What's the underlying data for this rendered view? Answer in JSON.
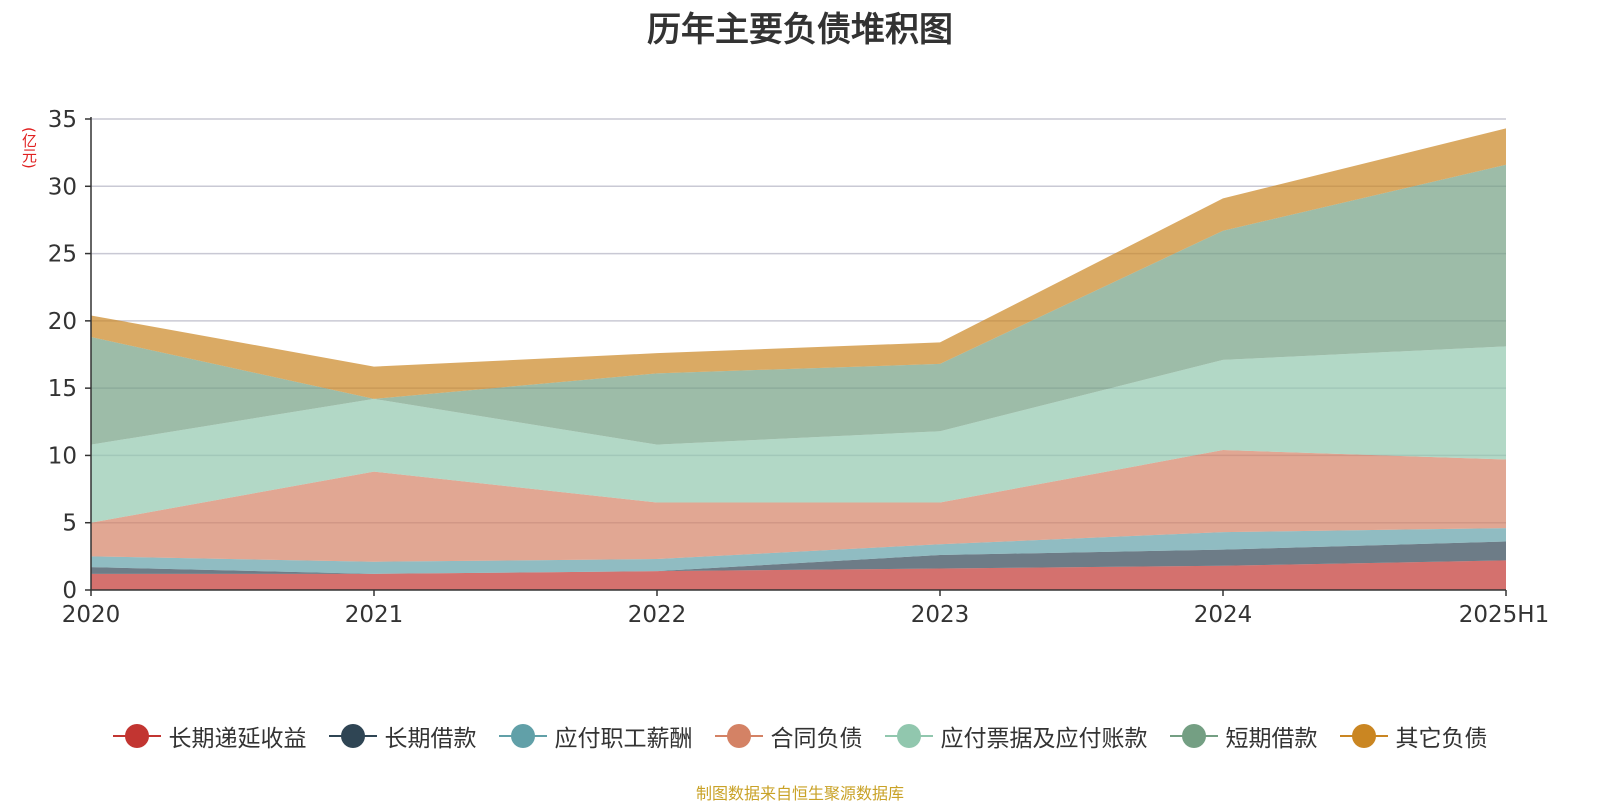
{
  "chart_data": {
    "type": "area",
    "stacked": true,
    "title": "历年主要负债堆积图",
    "y_unit_label": "(亿元)",
    "categories": [
      "2020",
      "2021",
      "2022",
      "2023",
      "2024",
      "2025H1"
    ],
    "ylim": [
      0,
      35
    ],
    "yticks": [
      0,
      5,
      10,
      15,
      20,
      25,
      30,
      35
    ],
    "grid": true,
    "legend_position": "bottom",
    "series": [
      {
        "name": "长期递延收益",
        "color": "#c23531",
        "values": [
          1.2,
          1.2,
          1.4,
          1.6,
          1.8,
          2.2
        ]
      },
      {
        "name": "长期借款",
        "color": "#2f4554",
        "values": [
          0.5,
          0.0,
          0.0,
          1.0,
          1.2,
          1.4
        ]
      },
      {
        "name": "应付职工薪酬",
        "color": "#61a0a8",
        "values": [
          0.8,
          0.9,
          0.9,
          0.8,
          1.3,
          1.0
        ]
      },
      {
        "name": "合同负债",
        "color": "#d48265",
        "values": [
          2.5,
          6.7,
          4.2,
          3.1,
          6.1,
          5.1
        ]
      },
      {
        "name": "应付票据及应付账款",
        "color": "#91c7ae",
        "values": [
          5.8,
          5.4,
          4.3,
          5.3,
          6.7,
          8.4
        ]
      },
      {
        "name": "短期借款",
        "color": "#749f83",
        "values": [
          8.0,
          0.0,
          5.3,
          5.0,
          9.6,
          13.5
        ]
      },
      {
        "name": "其它负债",
        "color": "#ca8622",
        "values": [
          1.6,
          2.4,
          1.5,
          1.6,
          2.4,
          2.7
        ]
      }
    ]
  },
  "source_note": "制图数据来自恒生聚源数据库"
}
